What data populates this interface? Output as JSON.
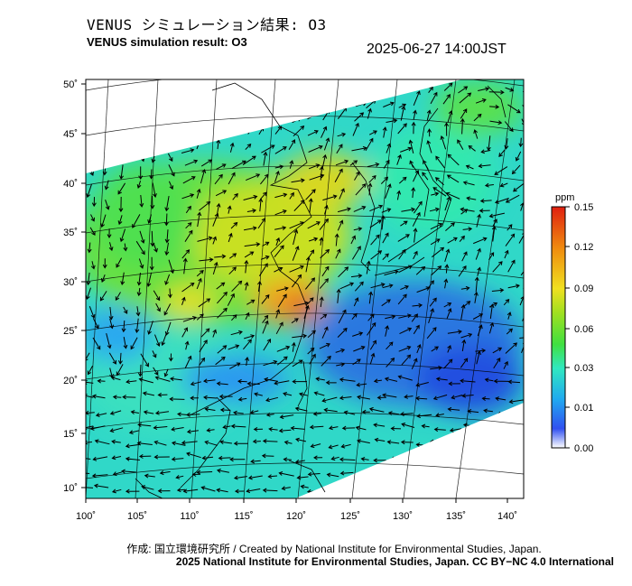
{
  "header": {
    "title_jp": "VENUS シミュレーション結果: O3",
    "title_en": "VENUS simulation result: O3",
    "timestamp": "2025-06-27 14:00JST"
  },
  "map": {
    "lon_ticks": [
      "100˚",
      "105˚",
      "110˚",
      "115˚",
      "120˚",
      "125˚",
      "130˚",
      "135˚",
      "140˚"
    ],
    "lat_ticks": [
      "50˚",
      "45˚",
      "40˚",
      "35˚",
      "30˚",
      "25˚",
      "20˚",
      "15˚",
      "10˚"
    ],
    "extent": {
      "lon": [
        100,
        141
      ],
      "lat": [
        9,
        51
      ]
    },
    "field": "O3 concentration with wind vectors",
    "colors": {
      "low": "#2060e0",
      "mid": "#30e060",
      "high": "#e03020",
      "land": "#000000"
    }
  },
  "colorbar": {
    "unit": "ppm",
    "ticks": [
      "0.15",
      "0.12",
      "0.09",
      "0.06",
      "0.03",
      "0.01",
      "0.00"
    ],
    "stops": [
      "#ffffff",
      "#3050f0",
      "#20a8f0",
      "#30e8c0",
      "#40e040",
      "#a0e020",
      "#f0e020",
      "#f09010",
      "#e02010"
    ]
  },
  "credits": {
    "line1": "作成: 国立環境研究所 / Created by National Institute for Environmental Studies, Japan.",
    "line2": "2025 National Institute for Environmental Studies, Japan. CC BY−NC 4.0 International"
  }
}
